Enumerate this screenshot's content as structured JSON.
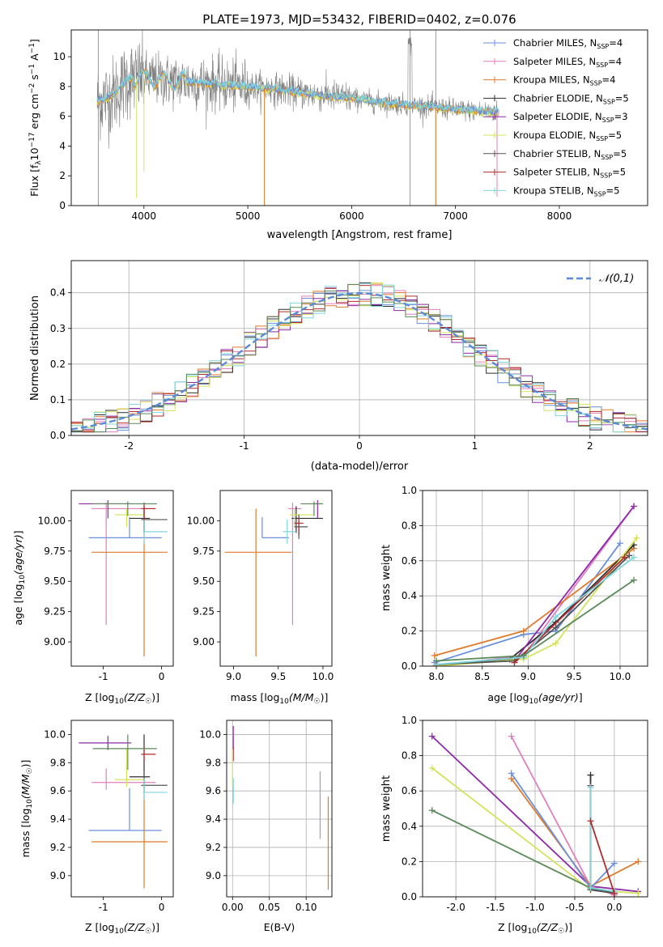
{
  "figure_title": "PLATE=1973, MJD=53432, FIBERID=0402, z=0.076",
  "colors": {
    "Chabrier MILES": "#6a8fdc",
    "Salpeter MILES": "#e07fbe",
    "Kroupa MILES": "#e07a2a",
    "Chabrier ELODIE": "#2f2f2f",
    "Salpeter ELODIE": "#8e2aa8",
    "Kroupa ELODIE": "#d4e35a",
    "Chabrier STELIB": "#555555",
    "Salpeter STELIB": "#b32a2a",
    "Kroupa STELIB": "#7fd6dc",
    "data": "#808080",
    "gauss": "#5b8bd6",
    "elodie_green": "#5a8a5a"
  },
  "chart_data": [
    {
      "id": "spectrum",
      "type": "line",
      "xlabel": "wavelength [Angstrom, rest frame]",
      "ylabel": "Flux [f_λ 10^-17 erg cm^-2 s^-1 A^-1]",
      "xlim": [
        3300,
        8850
      ],
      "ylim": [
        0,
        11.8
      ],
      "xticks": [
        4000,
        5000,
        6000,
        7000,
        8000
      ],
      "yticks": [
        0,
        2,
        4,
        6,
        8,
        10
      ],
      "continuum": {
        "x": [
          3550,
          3700,
          3850,
          4000,
          4200,
          4500,
          4800,
          5000,
          5300,
          5600,
          5900,
          6200,
          6500,
          6800,
          7100,
          7400
        ],
        "y": [
          7.0,
          7.4,
          8.5,
          8.6,
          8.4,
          8.3,
          8.1,
          8.0,
          7.8,
          7.5,
          7.3,
          7.0,
          6.8,
          6.6,
          6.4,
          6.3
        ]
      },
      "legend": [
        {
          "label": "Chabrier MILES, N_SSP=4",
          "text_main": "Chabrier MILES, N",
          "text_sub": "SSP",
          "text_tail": "=4"
        },
        {
          "label": "Salpeter MILES, N_SSP=4",
          "text_main": "Salpeter MILES, N",
          "text_sub": "SSP",
          "text_tail": "=4"
        },
        {
          "label": "Kroupa MILES, N_SSP=4",
          "text_main": "Kroupa MILES, N",
          "text_sub": "SSP",
          "text_tail": "=4"
        },
        {
          "label": "Chabrier ELODIE, N_SSP=5",
          "text_main": "Chabrier ELODIE, N",
          "text_sub": "SSP",
          "text_tail": "=5"
        },
        {
          "label": "Salpeter ELODIE, N_SSP=3",
          "text_main": "Salpeter ELODIE, N",
          "text_sub": "SSP",
          "text_tail": "=3"
        },
        {
          "label": "Kroupa ELODIE, N_SSP=5",
          "text_main": "Kroupa ELODIE, N",
          "text_sub": "SSP",
          "text_tail": "=5"
        },
        {
          "label": "Chabrier STELIB, N_SSP=5",
          "text_main": "Chabrier STELIB, N",
          "text_sub": "SSP",
          "text_tail": "=5"
        },
        {
          "label": "Salpeter STELIB, N_SSP=5",
          "text_main": "Salpeter STELIB, N",
          "text_sub": "SSP",
          "text_tail": "=5"
        },
        {
          "label": "Kroupa STELIB, N_SSP=5",
          "text_main": "Kroupa STELIB, N",
          "text_sub": "SSP",
          "text_tail": "=5"
        }
      ]
    },
    {
      "id": "residuals",
      "type": "step",
      "xlabel": "(data-model)/error",
      "ylabel": "Normed distribution",
      "xlim": [
        -2.5,
        2.5
      ],
      "ylim": [
        0,
        0.49
      ],
      "xticks": [
        -2,
        -1,
        0,
        1,
        2
      ],
      "yticks": [
        0.0,
        0.1,
        0.2,
        0.3,
        0.4
      ],
      "grid": true,
      "legend": "𝒩(0,1)",
      "bin_width": 0.1
    },
    {
      "id": "age_vs_Z",
      "type": "errorbar",
      "xlabel": "Z [log10(Z/Z☉)]",
      "ylabel": "age [log10(age/yr)]",
      "xlim": [
        -1.55,
        0.2
      ],
      "ylim": [
        8.8,
        10.25
      ],
      "xticks": [
        -1,
        0
      ],
      "yticks": [
        9.0,
        9.25,
        9.5,
        9.75,
        10.0
      ],
      "points": [
        {
          "model": "Chabrier MILES",
          "x": -0.55,
          "xerr": [
            0.7,
            0.55
          ],
          "y": 9.86,
          "yerr": [
            0.0,
            0.17
          ]
        },
        {
          "model": "Salpeter MILES",
          "x": -0.95,
          "xerr": [
            0.25,
            0.85
          ],
          "y": 10.1,
          "yerr": [
            0.96,
            0.05
          ]
        },
        {
          "model": "Kroupa MILES",
          "x": -0.3,
          "xerr": [
            0.9,
            0.4
          ],
          "y": 9.74,
          "yerr": [
            0.86,
            0.36
          ]
        },
        {
          "model": "Chabrier ELODIE",
          "x": -0.3,
          "xerr": [
            0.25,
            0.1
          ],
          "y": 10.02,
          "yerr": [
            0.12,
            0.1
          ]
        },
        {
          "model": "Salpeter ELODIE",
          "x": -0.92,
          "xerr": [
            0.5,
            0.4
          ],
          "y": 10.14,
          "yerr": [
            0.12,
            0.03
          ]
        },
        {
          "model": "Kroupa ELODIE",
          "x": -0.6,
          "xerr": [
            0.2,
            0.3
          ],
          "y": 10.05,
          "yerr": [
            0.1,
            0.05
          ]
        },
        {
          "model": "Chabrier STELIB",
          "x": -0.3,
          "xerr": [
            0.05,
            0.4
          ],
          "y": 10.01,
          "yerr": [
            0.1,
            0.1
          ]
        },
        {
          "model": "Salpeter STELIB",
          "x": -0.3,
          "xerr": [
            0.05,
            0.2
          ],
          "y": 10.1,
          "yerr": [
            0.1,
            0.05
          ]
        },
        {
          "model": "Kroupa STELIB",
          "x": -0.3,
          "xerr": [
            0.02,
            0.4
          ],
          "y": 9.91,
          "yerr": [
            0.1,
            0.1
          ]
        },
        {
          "model": "Green ELODIE",
          "x": -0.58,
          "xerr": [
            0.6,
            0.5
          ],
          "y": 10.14,
          "yerr": [
            0.1,
            0.02
          ]
        }
      ]
    },
    {
      "id": "age_vs_mass",
      "type": "errorbar",
      "xlabel": "mass [log10(M/M☉)]",
      "ylabel": "",
      "xlim": [
        8.85,
        10.1
      ],
      "ylim": [
        8.8,
        10.25
      ],
      "xticks": [
        9.0,
        9.5,
        10.0
      ],
      "yticks": [
        9.0,
        9.25,
        9.5,
        9.75,
        10.0
      ],
      "points": [
        {
          "model": "Chabrier MILES",
          "x": 9.32,
          "xerr": [
            0.0,
            0.3
          ],
          "y": 9.86,
          "yerr": [
            0.0,
            0.17
          ]
        },
        {
          "model": "Salpeter MILES",
          "x": 9.66,
          "xerr": [
            0.05,
            0.1
          ],
          "y": 10.1,
          "yerr": [
            0.96,
            0.05
          ]
        },
        {
          "model": "Kroupa MILES",
          "x": 9.25,
          "xerr": [
            0.35,
            0.4
          ],
          "y": 9.74,
          "yerr": [
            0.86,
            0.36
          ]
        },
        {
          "model": "Chabrier ELODIE",
          "x": 9.7,
          "xerr": [
            0.05,
            0.3
          ],
          "y": 10.02,
          "yerr": [
            0.12,
            0.1
          ]
        },
        {
          "model": "Salpeter ELODIE",
          "x": 9.94,
          "xerr": [
            0.05,
            0.05
          ],
          "y": 10.14,
          "yerr": [
            0.12,
            0.03
          ]
        },
        {
          "model": "Kroupa ELODIE",
          "x": 9.68,
          "xerr": [
            0.05,
            0.22
          ],
          "y": 10.05,
          "yerr": [
            0.1,
            0.05
          ]
        },
        {
          "model": "Chabrier STELIB",
          "x": 9.73,
          "xerr": [
            0.05,
            0.1
          ],
          "y": 9.95,
          "yerr": [
            0.1,
            0.1
          ]
        },
        {
          "model": "Salpeter STELIB",
          "x": 9.73,
          "xerr": [
            0.05,
            0.05
          ],
          "y": 9.98,
          "yerr": [
            0.1,
            0.05
          ]
        },
        {
          "model": "Kroupa STELIB",
          "x": 9.6,
          "xerr": [
            0.05,
            0.1
          ],
          "y": 9.91,
          "yerr": [
            0.1,
            0.1
          ]
        },
        {
          "model": "Green ELODIE",
          "x": 9.9,
          "xerr": [
            0.15,
            0.1
          ],
          "y": 10.14,
          "yerr": [
            0.1,
            0.02
          ]
        }
      ]
    },
    {
      "id": "weight_vs_age",
      "type": "line",
      "xlabel": "age [log10(age/yr)]",
      "ylabel": "mass weight",
      "xlim": [
        7.85,
        10.3
      ],
      "ylim": [
        0,
        1.0
      ],
      "xticks": [
        8.0,
        8.5,
        9.0,
        9.5,
        10.0
      ],
      "yticks": [
        0.0,
        0.2,
        0.4,
        0.6,
        0.8,
        1.0
      ],
      "grid": true,
      "series": [
        {
          "model": "Chabrier MILES",
          "x": [
            7.98,
            8.95,
            9.3,
            10.0
          ],
          "y": [
            0.02,
            0.18,
            0.2,
            0.7
          ]
        },
        {
          "model": "Salpeter MILES",
          "x": [
            7.98,
            8.95,
            10.15
          ],
          "y": [
            0.0,
            0.06,
            0.91
          ]
        },
        {
          "model": "Kroupa MILES",
          "x": [
            7.98,
            8.95,
            10.15
          ],
          "y": [
            0.06,
            0.2,
            0.67
          ]
        },
        {
          "model": "Chabrier ELODIE",
          "x": [
            8.0,
            8.8,
            9.3,
            10.15
          ],
          "y": [
            0.0,
            0.04,
            0.25,
            0.69
          ]
        },
        {
          "model": "Salpeter ELODIE",
          "x": [
            8.85,
            10.15
          ],
          "y": [
            0.03,
            0.91
          ]
        },
        {
          "model": "Kroupa ELODIE",
          "x": [
            8.0,
            8.95,
            9.3,
            10.18
          ],
          "y": [
            0.0,
            0.04,
            0.13,
            0.73
          ]
        },
        {
          "model": "Chabrier STELIB",
          "x": [
            8.0,
            8.85,
            9.3,
            10.1
          ],
          "y": [
            0.01,
            0.03,
            0.22,
            0.63
          ]
        },
        {
          "model": "Salpeter STELIB",
          "x": [
            8.85,
            10.05
          ],
          "y": [
            0.02,
            0.62
          ]
        },
        {
          "model": "Kroupa STELIB",
          "x": [
            8.0,
            8.95,
            9.3,
            10.15
          ],
          "y": [
            0.01,
            0.05,
            0.28,
            0.62
          ]
        },
        {
          "model": "Green ELODIE",
          "x": [
            8.0,
            8.95,
            10.15
          ],
          "y": [
            0.03,
            0.06,
            0.49
          ]
        }
      ]
    },
    {
      "id": "mass_vs_Z",
      "type": "errorbar",
      "xlabel": "Z [log10(Z/Z☉)]",
      "ylabel": "mass [log10(M/M☉)]",
      "xlim": [
        -1.55,
        0.2
      ],
      "ylim": [
        8.85,
        10.1
      ],
      "xticks": [
        -1,
        0
      ],
      "yticks": [
        9.0,
        9.2,
        9.4,
        9.6,
        9.8,
        10.0
      ],
      "points": [
        {
          "model": "Chabrier MILES",
          "x": -0.55,
          "xerr": [
            0.7,
            0.55
          ],
          "y": 9.32,
          "yerr": [
            0.0,
            0.3
          ]
        },
        {
          "model": "Salpeter MILES",
          "x": -0.95,
          "xerr": [
            0.25,
            0.85
          ],
          "y": 9.66,
          "yerr": [
            0.05,
            0.1
          ]
        },
        {
          "model": "Kroupa MILES",
          "x": -0.3,
          "xerr": [
            0.9,
            0.4
          ],
          "y": 9.24,
          "yerr": [
            0.33,
            0.4
          ]
        },
        {
          "model": "Chabrier ELODIE",
          "x": -0.3,
          "xerr": [
            0.25,
            0.1
          ],
          "y": 9.7,
          "yerr": [
            0.05,
            0.3
          ]
        },
        {
          "model": "Salpeter ELODIE",
          "x": -0.92,
          "xerr": [
            0.5,
            0.4
          ],
          "y": 9.94,
          "yerr": [
            0.05,
            0.05
          ]
        },
        {
          "model": "Kroupa ELODIE",
          "x": -0.6,
          "xerr": [
            0.2,
            0.3
          ],
          "y": 9.68,
          "yerr": [
            0.05,
            0.22
          ]
        },
        {
          "model": "Chabrier STELIB",
          "x": -0.3,
          "xerr": [
            0.05,
            0.4
          ],
          "y": 9.64,
          "yerr": [
            0.05,
            0.1
          ]
        },
        {
          "model": "Salpeter STELIB",
          "x": -0.3,
          "xerr": [
            0.05,
            0.2
          ],
          "y": 9.86,
          "yerr": [
            0.05,
            0.05
          ]
        },
        {
          "model": "Kroupa STELIB",
          "x": -0.3,
          "xerr": [
            0.02,
            0.4
          ],
          "y": 9.59,
          "yerr": [
            0.05,
            0.1
          ]
        },
        {
          "model": "Green ELODIE",
          "x": -0.58,
          "xerr": [
            0.6,
            0.5
          ],
          "y": 9.9,
          "yerr": [
            0.15,
            0.1
          ]
        }
      ]
    },
    {
      "id": "mass_vs_EBV",
      "type": "errorbar",
      "xlabel": "E(B-V)",
      "ylabel": "",
      "xlim": [
        -0.008,
        0.135
      ],
      "ylim": [
        8.85,
        10.1
      ],
      "xticks": [
        0.0,
        0.05,
        0.1
      ],
      "xtick_labels": [
        "0.00",
        "0.05",
        "0.10"
      ],
      "yticks": [
        9.0,
        9.2,
        9.4,
        9.6,
        9.8,
        10.0
      ],
      "grid": true,
      "points": [
        {
          "model": "Salpeter ELODIE",
          "x": 0.001,
          "y": 9.94,
          "yerr": [
            0.05,
            0.12
          ]
        },
        {
          "model": "Salpeter STELIB",
          "x": 0.001,
          "y": 9.86,
          "yerr": [
            0.05,
            0.05
          ]
        },
        {
          "model": "Kroupa ELODIE",
          "x": 0.0,
          "y": 9.68,
          "yerr": [
            0.05,
            0.22
          ]
        },
        {
          "model": "Kroupa STELIB",
          "x": 0.001,
          "y": 9.59,
          "yerr": [
            0.08,
            0.1
          ]
        },
        {
          "model": "Salpeter MILES",
          "x": 0.119,
          "y": 9.5,
          "yerr": [
            0.24,
            0.24
          ]
        },
        {
          "model": "Kroupa MILES",
          "x": 0.13,
          "y": 9.24,
          "yerr": [
            0.34,
            0.32
          ]
        }
      ]
    },
    {
      "id": "weight_vs_Z",
      "type": "line",
      "xlabel": "Z [log10(Z/Z☉)]",
      "ylabel": "mass weight",
      "xlim": [
        -2.42,
        0.42
      ],
      "ylim": [
        0,
        1.0
      ],
      "xticks": [
        -2.0,
        -1.5,
        -1.0,
        -0.5,
        0.0
      ],
      "yticks": [
        0.0,
        0.2,
        0.4,
        0.6,
        0.8,
        1.0
      ],
      "grid": true,
      "series": [
        {
          "model": "Salpeter ELODIE",
          "x": [
            -2.3,
            -0.3,
            0.3
          ],
          "y": [
            0.91,
            0.06,
            0.03
          ]
        },
        {
          "model": "Kroupa ELODIE",
          "x": [
            -2.3,
            -0.3,
            0.3
          ],
          "y": [
            0.73,
            0.04,
            0.02
          ]
        },
        {
          "model": "Green ELODIE",
          "x": [
            -2.3,
            -0.3,
            0.0
          ],
          "y": [
            0.49,
            0.05,
            0.03
          ]
        },
        {
          "model": "Salpeter MILES",
          "x": [
            -1.3,
            -0.3,
            0.0
          ],
          "y": [
            0.91,
            0.06,
            0.01
          ]
        },
        {
          "model": "Kroupa MILES",
          "x": [
            -1.3,
            -0.3,
            0.3
          ],
          "y": [
            0.67,
            0.06,
            0.2
          ]
        },
        {
          "model": "Chabrier MILES",
          "x": [
            -1.3,
            -0.3,
            0.0
          ],
          "y": [
            0.7,
            0.05,
            0.19
          ]
        },
        {
          "model": "Chabrier ELODIE",
          "x": [
            -0.3,
            -0.3,
            0.0
          ],
          "y": [
            0.69,
            0.05,
            0.02
          ]
        },
        {
          "model": "Chabrier STELIB",
          "x": [
            -0.3,
            -0.3,
            0.0
          ],
          "y": [
            0.63,
            0.04,
            0.02
          ]
        },
        {
          "model": "Kroupa STELIB",
          "x": [
            -0.3,
            -0.3,
            0.0
          ],
          "y": [
            0.62,
            0.05,
            0.03
          ]
        },
        {
          "model": "Salpeter STELIB",
          "x": [
            -0.3,
            0.0
          ],
          "y": [
            0.43,
            0.02
          ]
        }
      ]
    }
  ]
}
